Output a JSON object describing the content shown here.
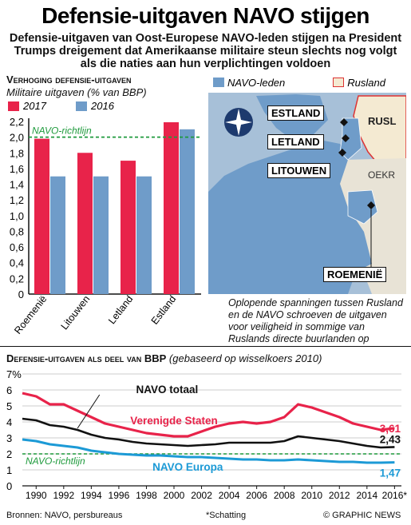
{
  "title": "Defensie-uitgaven NAVO stijgen",
  "subtitle": "Defensie-uitgaven van Oost-Europese NAVO-leden stijgen na President Trumps dreigement dat Amerikaanse militaire steun slechts nog volgt als die naties aan hun verplichtingen voldoen",
  "colors": {
    "red": "#e8234a",
    "blue": "#6f9cc9",
    "lightblue": "#a7c0d8",
    "land": "#e8e3d6",
    "russia": "#f4ead2",
    "dark": "#111111",
    "green": "#1e9a3c",
    "cyan": "#1c9ad6"
  },
  "section1": {
    "heading": "Verhoging defensie-uitgaven",
    "unit": "Militaire uitgaven (% van BBP)"
  },
  "map": {
    "legend_nato": "NAVO-leden",
    "legend_russia": "Rusland",
    "labels": {
      "estland": "ESTLAND",
      "letland": "LETLAND",
      "litouwen": "LITOUWEN",
      "roemenie": "ROEMENIË",
      "rusl": "RUSL",
      "oekr": "OEKR"
    },
    "caption": "Oplopende spanningen tussen Rusland en de NAVO schroeven de uitgaven voor veiligheid in sommige van Ruslands directe buurlanden op"
  },
  "section2": {
    "heading": "Defensie-uitgaven als deel van BBP",
    "note": "(gebaseerd op wisselkoers 2010)"
  },
  "footer": {
    "sources": "Bronnen: NAVO, persbureaus",
    "estimate": "*Schatting",
    "credit": "© GRAPHIC NEWS"
  },
  "chart_data": [
    {
      "type": "bar",
      "title": "Verhoging defensie-uitgaven",
      "ylabel": "Militaire uitgaven (% van BBP)",
      "categories": [
        "Roemenië",
        "Litouwen",
        "Letland",
        "Estland"
      ],
      "series": [
        {
          "name": "2017",
          "values": [
            1.98,
            1.8,
            1.7,
            2.19
          ]
        },
        {
          "name": "2016",
          "values": [
            1.5,
            1.5,
            1.5,
            2.1
          ]
        }
      ],
      "ylim": [
        0,
        2.2
      ],
      "yticks": [
        "0",
        "0,2",
        "0,4",
        "0,6",
        "0,8",
        "1,0",
        "1,2",
        "1,4",
        "1,6",
        "1,8",
        "2,0",
        "2,2"
      ],
      "reference_line": {
        "label": "NAVO-richtlijn",
        "value": 2.0
      },
      "grid": false,
      "legend": "top-left"
    },
    {
      "type": "line",
      "title": "Defensie-uitgaven als deel van BBP",
      "subtitle": "(gebaseerd op wisselkoers 2010)",
      "ylabel": "%",
      "ylim": [
        0,
        7
      ],
      "yticks": [
        "0",
        "1",
        "2",
        "3",
        "4",
        "5",
        "6",
        "7%"
      ],
      "xlim": [
        1989,
        2016.5
      ],
      "xticks": [
        "1990",
        "1992",
        "1994",
        "1996",
        "1998",
        "2000",
        "2002",
        "2004",
        "2006",
        "2008",
        "2010",
        "2012",
        "2014",
        "2016*"
      ],
      "x": [
        1989,
        1990,
        1991,
        1992,
        1993,
        1994,
        1995,
        1996,
        1997,
        1998,
        1999,
        2000,
        2001,
        2002,
        2003,
        2004,
        2005,
        2006,
        2007,
        2008,
        2009,
        2010,
        2011,
        2012,
        2013,
        2014,
        2015,
        2016
      ],
      "series": [
        {
          "name": "Verenigde Staten",
          "values": [
            5.8,
            5.6,
            5.1,
            5.1,
            4.7,
            4.3,
            3.9,
            3.7,
            3.5,
            3.3,
            3.2,
            3.1,
            3.1,
            3.4,
            3.7,
            3.9,
            4.0,
            3.9,
            4.0,
            4.3,
            5.1,
            4.9,
            4.6,
            4.3,
            3.9,
            3.7,
            3.5,
            3.61
          ],
          "end_label": "3,61"
        },
        {
          "name": "NAVO totaal",
          "values": [
            4.2,
            4.1,
            3.8,
            3.7,
            3.5,
            3.2,
            3.0,
            2.9,
            2.75,
            2.65,
            2.6,
            2.55,
            2.5,
            2.55,
            2.6,
            2.7,
            2.7,
            2.7,
            2.7,
            2.8,
            3.1,
            3.0,
            2.9,
            2.8,
            2.65,
            2.5,
            2.4,
            2.43
          ],
          "end_label": "2,43"
        },
        {
          "name": "NAVO Europa",
          "values": [
            2.9,
            2.8,
            2.6,
            2.5,
            2.4,
            2.2,
            2.1,
            2.0,
            1.95,
            1.9,
            1.9,
            1.85,
            1.8,
            1.8,
            1.75,
            1.7,
            1.65,
            1.65,
            1.6,
            1.6,
            1.65,
            1.6,
            1.55,
            1.5,
            1.5,
            1.45,
            1.45,
            1.47
          ],
          "end_label": "1,47"
        }
      ],
      "reference_line": {
        "label": "NAVO-richtlijn",
        "value": 2.0
      },
      "grid": true
    }
  ]
}
